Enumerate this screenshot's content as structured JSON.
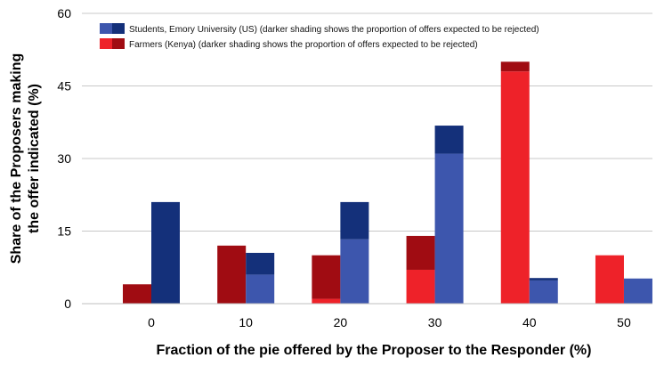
{
  "chart_data": {
    "type": "bar",
    "categories": [
      "0",
      "10",
      "20",
      "30",
      "40",
      "50"
    ],
    "ylim": [
      0,
      60
    ],
    "yticks": [
      "0",
      "15",
      "30",
      "45",
      "60"
    ],
    "grid": true,
    "legend_placement": "top-left",
    "xlabel": "Fraction of the pie offered by the Proposer to the Responder (%)",
    "ylabel_line1": "Share of the Proposers making",
    "ylabel_line2": "the offer indicated (%)",
    "series": [
      {
        "name": "Farmers (Kenya) (darker shading shows the proportion of offers expected to be rejected)",
        "color_light": "#ee2229",
        "color_dark": "#a00c12",
        "values": [
          4,
          12,
          10,
          14,
          50,
          10
        ],
        "rejected": [
          4,
          12,
          9,
          7,
          2,
          0
        ]
      },
      {
        "name": "Students, Emory University (US) (darker shading shows the proportion of offers expected to be rejected)",
        "color_light": "#3d56ad",
        "color_dark": "#14307a",
        "values": [
          21,
          10.5,
          21,
          36.8,
          5.3,
          5.2
        ],
        "rejected": [
          21,
          4.5,
          7.7,
          5.8,
          0.5,
          0
        ]
      }
    ]
  }
}
